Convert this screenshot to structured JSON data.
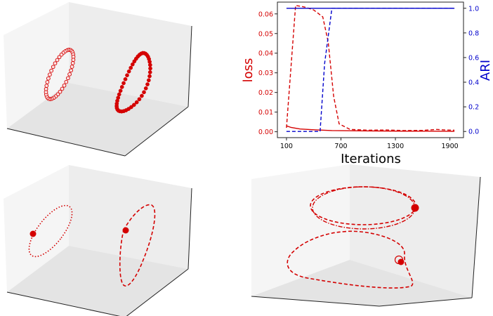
{
  "colors": {
    "loss": "#d40000",
    "ari": "#0000cc",
    "pane_light": "#f4f4f4",
    "pane_mid": "#ebebeb",
    "pane_dark": "#e2e2e2",
    "axis": "#222222"
  },
  "chart_data": [
    {
      "type": "scatter",
      "projection": "3d",
      "panel": "top-left",
      "description_of_marks": "two closed loops drawn with circle markers; left loop hollow-ish (light), right loop filled",
      "series": [
        {
          "marker": "hollow-circle"
        },
        {
          "marker": "filled-circle"
        }
      ]
    },
    {
      "type": "line",
      "panel": "top-right",
      "title": "",
      "xlabel": "Iterations",
      "ylabel_left": "loss",
      "ylabel_right": "ARI",
      "xlim": [
        0,
        2050
      ],
      "ylim_left": [
        -0.003,
        0.066
      ],
      "ylim_right": [
        -0.05,
        1.05
      ],
      "x_ticks": [
        "100",
        "700",
        "1300",
        "1900"
      ],
      "y_left_ticks": [
        "0.00",
        "0.01",
        "0.02",
        "0.03",
        "0.04",
        "0.05",
        "0.06"
      ],
      "y_right_ticks": [
        "0.0",
        "0.2",
        "0.4",
        "0.6",
        "0.8",
        "1.0"
      ],
      "series": [
        {
          "axis": "left",
          "style": "dashed",
          "color": "loss",
          "x": [
            100,
            200,
            300,
            400,
            500,
            560,
            620,
            680,
            800,
            1000,
            1200,
            1400,
            1600,
            1750,
            1850,
            1950
          ],
          "y": [
            0.002,
            0.0643,
            0.0635,
            0.062,
            0.0585,
            0.0455,
            0.018,
            0.004,
            0.0012,
            0.0008,
            0.0009,
            0.0006,
            0.0007,
            0.0012,
            0.0009,
            0.0008
          ]
        },
        {
          "axis": "left",
          "style": "solid",
          "color": "loss",
          "x": [
            100,
            150,
            250,
            400,
            600,
            800,
            1100,
            1400,
            1700,
            1950
          ],
          "y": [
            0.003,
            0.0022,
            0.0014,
            0.001,
            0.0006,
            0.0005,
            0.0004,
            0.0003,
            0.0003,
            0.0002
          ]
        },
        {
          "axis": "right",
          "style": "dashed",
          "color": "ari",
          "x": [
            100,
            470,
            520,
            600,
            700,
            1000,
            1300,
            1600,
            1950
          ],
          "y": [
            0.0,
            0.0,
            0.55,
            1.0,
            1.0,
            1.0,
            1.0,
            1.0,
            1.0
          ]
        },
        {
          "axis": "right",
          "style": "solid",
          "color": "ari",
          "x": [
            100,
            400,
            700,
            1000,
            1300,
            1600,
            1950
          ],
          "y": [
            1.0,
            1.0,
            1.0,
            1.0,
            1.0,
            1.0,
            1.0
          ]
        }
      ]
    },
    {
      "type": "line",
      "projection": "3d",
      "panel": "bottom-left",
      "series": [
        {
          "style": "dotted",
          "start_marker": "filled-circle"
        },
        {
          "style": "dashed",
          "start_marker": "filled-circle"
        }
      ]
    },
    {
      "type": "line",
      "projection": "3d",
      "panel": "bottom-right",
      "series": [
        {
          "style": "dashed"
        },
        {
          "style": "dashdot"
        },
        {
          "style": "dashed"
        }
      ]
    }
  ]
}
